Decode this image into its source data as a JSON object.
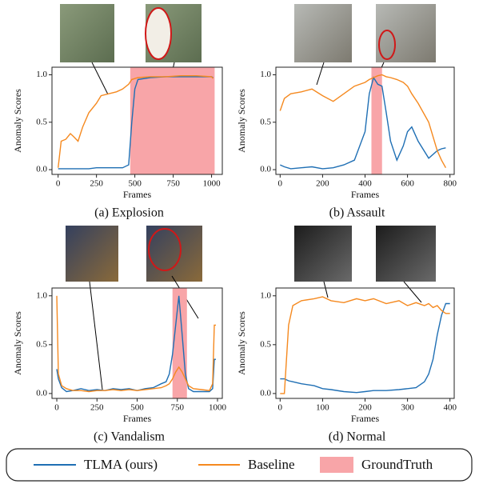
{
  "chart_data": [
    {
      "type": "line",
      "caption": "(a) Explosion",
      "x_label": "Frames",
      "y_label": "Anomaly Scores",
      "xlim": [
        -40,
        1070
      ],
      "ylim": [
        -0.05,
        1.08
      ],
      "xticks": [
        0,
        250,
        500,
        750,
        1000
      ],
      "yticks": [
        {
          "value": 0,
          "label": "0.0"
        },
        {
          "value": 0.5,
          "label": "0.5"
        },
        {
          "value": 1,
          "label": "1.0"
        }
      ],
      "ground_truth": {
        "name": "GroundTruth",
        "color": "#f8a5a8",
        "x": [
          470,
          1020
        ]
      },
      "x": [
        0,
        20,
        50,
        80,
        100,
        130,
        160,
        200,
        250,
        280,
        330,
        380,
        420,
        460,
        480,
        500,
        520,
        600,
        700,
        800,
        900,
        1000,
        1010
      ],
      "series": [
        {
          "name": "TLMA (ours)",
          "color": "#1f6fb4",
          "values": [
            0.01,
            0.01,
            0.01,
            0.01,
            0.01,
            0.01,
            0.01,
            0.01,
            0.02,
            0.02,
            0.02,
            0.02,
            0.02,
            0.05,
            0.5,
            0.85,
            0.95,
            0.97,
            0.98,
            0.98,
            0.98,
            0.98,
            0.97
          ]
        },
        {
          "name": "Baseline",
          "color": "#f5891f",
          "values": [
            0.02,
            0.3,
            0.32,
            0.38,
            0.35,
            0.3,
            0.45,
            0.6,
            0.7,
            0.78,
            0.8,
            0.82,
            0.85,
            0.9,
            0.95,
            0.96,
            0.97,
            0.98,
            0.98,
            0.99,
            0.99,
            0.98,
            0.96
          ]
        }
      ]
    },
    {
      "type": "line",
      "caption": "(b) Assault",
      "x_label": "Frames",
      "y_label": "Anomaly Scores",
      "xlim": [
        -20,
        820
      ],
      "ylim": [
        -0.05,
        1.08
      ],
      "xticks": [
        0,
        200,
        400,
        600,
        800
      ],
      "yticks": [
        {
          "value": 0,
          "label": "0.0"
        },
        {
          "value": 0.5,
          "label": "0.5"
        },
        {
          "value": 1,
          "label": "1.0"
        }
      ],
      "ground_truth": {
        "color": "#f8a5a8",
        "x": [
          430,
          480
        ]
      },
      "x": [
        0,
        20,
        50,
        100,
        150,
        200,
        250,
        300,
        350,
        400,
        420,
        440,
        460,
        480,
        500,
        520,
        550,
        580,
        600,
        620,
        650,
        700,
        740,
        760,
        780
      ],
      "series": [
        {
          "name": "TLMA (ours)",
          "color": "#1f6fb4",
          "values": [
            0.05,
            0.03,
            0.01,
            0.02,
            0.03,
            0.01,
            0.02,
            0.05,
            0.1,
            0.4,
            0.8,
            0.97,
            0.9,
            0.88,
            0.6,
            0.3,
            0.1,
            0.25,
            0.4,
            0.45,
            0.3,
            0.12,
            0.2,
            0.22,
            0.23
          ]
        },
        {
          "name": "Baseline",
          "color": "#f5891f",
          "values": [
            0.62,
            0.75,
            0.8,
            0.82,
            0.85,
            0.78,
            0.72,
            0.8,
            0.88,
            0.92,
            0.95,
            0.97,
            0.99,
            1.0,
            0.98,
            0.97,
            0.95,
            0.92,
            0.88,
            0.8,
            0.7,
            0.5,
            0.2,
            0.1,
            0.02
          ]
        }
      ]
    },
    {
      "type": "line",
      "caption": "(c) Vandalism",
      "x_label": "Frames",
      "y_label": "Anomaly Scores",
      "xlim": [
        -30,
        1030
      ],
      "ylim": [
        -0.05,
        1.08
      ],
      "xticks": [
        0,
        250,
        500,
        750,
        1000
      ],
      "yticks": [
        {
          "value": 0,
          "label": "0.0"
        },
        {
          "value": 0.5,
          "label": "0.5"
        },
        {
          "value": 1,
          "label": "1.0"
        }
      ],
      "ground_truth": {
        "color": "#f8a5a8",
        "x": [
          720,
          810
        ]
      },
      "x": [
        0,
        10,
        30,
        60,
        100,
        150,
        200,
        250,
        300,
        350,
        400,
        450,
        500,
        550,
        600,
        650,
        680,
        700,
        720,
        740,
        760,
        780,
        800,
        820,
        850,
        900,
        950,
        970,
        980,
        990
      ],
      "series": [
        {
          "name": "TLMA (ours)",
          "color": "#1f6fb4",
          "values": [
            0.25,
            0.15,
            0.06,
            0.02,
            0.03,
            0.05,
            0.03,
            0.04,
            0.03,
            0.05,
            0.04,
            0.05,
            0.03,
            0.05,
            0.06,
            0.1,
            0.12,
            0.2,
            0.4,
            0.7,
            1.0,
            0.6,
            0.2,
            0.05,
            0.02,
            0.02,
            0.02,
            0.05,
            0.35,
            0.35
          ]
        },
        {
          "name": "Baseline",
          "color": "#f5891f",
          "values": [
            1.0,
            0.2,
            0.08,
            0.05,
            0.03,
            0.03,
            0.02,
            0.03,
            0.03,
            0.04,
            0.03,
            0.04,
            0.03,
            0.04,
            0.05,
            0.06,
            0.08,
            0.1,
            0.15,
            0.22,
            0.27,
            0.22,
            0.15,
            0.08,
            0.05,
            0.04,
            0.03,
            0.1,
            0.7,
            0.7
          ]
        }
      ]
    },
    {
      "type": "line",
      "caption": "(d) Normal",
      "x_label": "Frames",
      "y_label": "Anomaly Scores",
      "xlim": [
        -10,
        410
      ],
      "ylim": [
        -0.05,
        1.08
      ],
      "xticks": [
        0,
        100,
        200,
        300,
        400
      ],
      "yticks": [
        {
          "value": 0,
          "label": "0.0"
        },
        {
          "value": 0.5,
          "label": "0.5"
        },
        {
          "value": 1,
          "label": "1.0"
        }
      ],
      "x": [
        0,
        10,
        20,
        30,
        50,
        80,
        100,
        120,
        150,
        180,
        200,
        220,
        250,
        280,
        300,
        320,
        340,
        350,
        360,
        370,
        380,
        390,
        400
      ],
      "series": [
        {
          "name": "TLMA (ours)",
          "color": "#1f6fb4",
          "values": [
            0.15,
            0.15,
            0.13,
            0.12,
            0.1,
            0.08,
            0.05,
            0.04,
            0.02,
            0.01,
            0.02,
            0.03,
            0.03,
            0.04,
            0.05,
            0.06,
            0.12,
            0.2,
            0.35,
            0.6,
            0.8,
            0.92,
            0.92
          ]
        },
        {
          "name": "Baseline",
          "color": "#f5891f",
          "values": [
            0.0,
            0.0,
            0.7,
            0.9,
            0.95,
            0.97,
            0.99,
            0.95,
            0.93,
            0.97,
            0.95,
            0.97,
            0.92,
            0.95,
            0.9,
            0.93,
            0.9,
            0.92,
            0.88,
            0.9,
            0.85,
            0.82,
            0.82
          ]
        }
      ]
    }
  ]
}
